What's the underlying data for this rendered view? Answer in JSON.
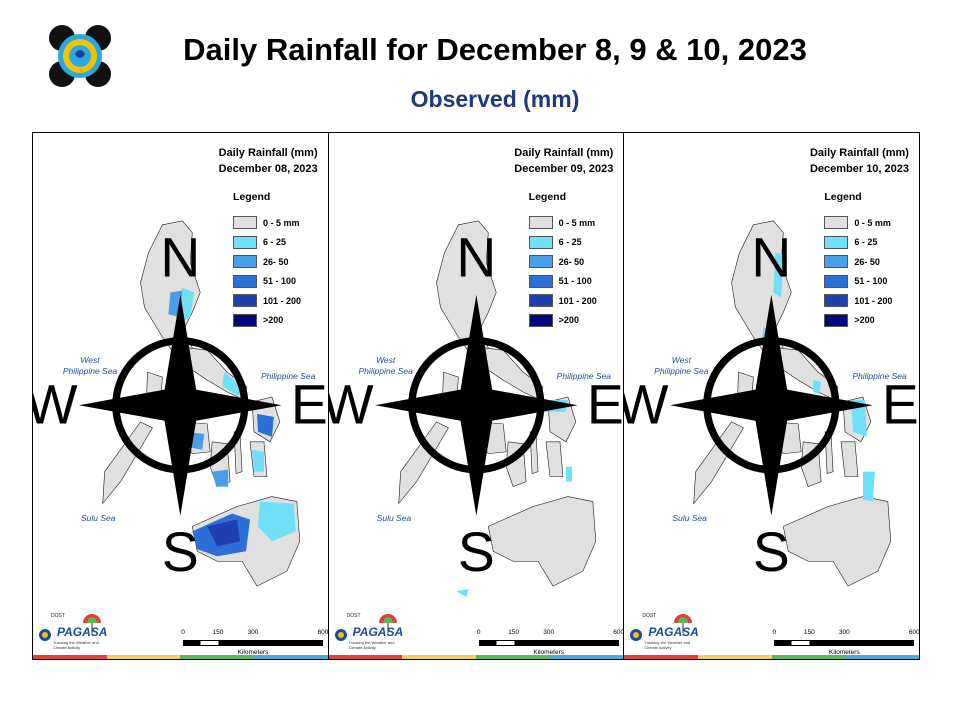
{
  "header": {
    "title": "Daily Rainfall for December 8, 9 & 10, 2023",
    "subtitle": "Observed (mm)"
  },
  "colors": {
    "r0_5": "#e0e0e0",
    "r6_25": "#6fe0f5",
    "r26_50": "#4a9de8",
    "r51_100": "#2c6fd6",
    "r101_200": "#2040b0",
    "r200p": "#07077d",
    "land_outline": "#1a1a1a",
    "sea_label": "#1f4e9a"
  },
  "legend": {
    "title": "Legend",
    "items": [
      {
        "label": "0 - 5 mm",
        "color": "#e0e0e0"
      },
      {
        "label": "6 - 25",
        "color": "#6fe0f5"
      },
      {
        "label": "26- 50",
        "color": "#4a9de8"
      },
      {
        "label": "51 - 100",
        "color": "#2c6fd6"
      },
      {
        "label": "101 - 200",
        "color": "#2040b0"
      },
      {
        "label": ">200",
        "color": "#07077d"
      }
    ]
  },
  "seas": {
    "west": "West\nPhilippine Sea",
    "east": "Philippine Sea",
    "sulu": "Sulu Sea"
  },
  "scale": {
    "ticks": [
      "0",
      "150",
      "300",
      "600"
    ],
    "unit": "Kilometers"
  },
  "branding": {
    "agency": "PAGASA",
    "dost": "DOST",
    "payong": "PAYONG",
    "tagline": "Tracking the Weather and Climate Activity"
  },
  "panels": [
    {
      "heading": "Daily Rainfall (mm)",
      "date": "December 08, 2023",
      "rain": [
        "luzon-east-6_25",
        "luzon-coast-26_50",
        "bicol-6_25",
        "bicol-51_100",
        "panay-26_50",
        "negros-26_50",
        "mindanao-north-6_25",
        "mindanao-west-51_100",
        "mindanao-west-101_200",
        "samar-26_50"
      ]
    },
    {
      "heading": "Daily Rainfall (mm)",
      "date": "December 09, 2023",
      "rain": [
        "bicol-6_25",
        "leyte-6_25",
        "palawan-tip-6_25"
      ]
    },
    {
      "heading": "Daily Rainfall (mm)",
      "date": "December 10, 2023",
      "rain": [
        "luzon-ne-6_25",
        "luzon-coast-6_25",
        "samar-6_25",
        "leyte-6_25",
        "mindanao-ne-6_25"
      ]
    }
  ]
}
